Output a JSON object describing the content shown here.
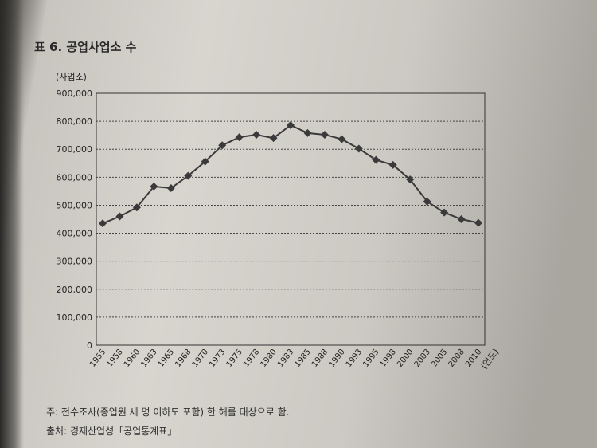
{
  "figure": {
    "title": "표 6. 공업사업소 수",
    "note": "주: 전수조사(종업원 세 명 이하도 포함) 한 해를 대상으로 함.",
    "source": "출처: 경제산업성「공업통계표」"
  },
  "chart_data": {
    "type": "line",
    "title": "표 6. 공업사업소 수",
    "ylabel": "(사업소)",
    "xlabel": "(연도)",
    "ylim": [
      0,
      900000
    ],
    "grid": "horizontal dotted",
    "marker": "diamond",
    "line_color": "#3a3a3a",
    "categories": [
      "1955",
      "1958",
      "1960",
      "1963",
      "1965",
      "1968",
      "1970",
      "1973",
      "1975",
      "1978",
      "1980",
      "1983",
      "1985",
      "1988",
      "1990",
      "1993",
      "1995",
      "1998",
      "2000",
      "2003",
      "2005",
      "2008",
      "2010"
    ],
    "series": [
      {
        "values": [
          435000,
          460000,
          492000,
          567000,
          561000,
          605000,
          656000,
          714000,
          743000,
          752000,
          740000,
          786000,
          758000,
          752000,
          736000,
          702000,
          662000,
          644000,
          592000,
          513000,
          474000,
          450000,
          437000
        ]
      }
    ],
    "ytick_labels": [
      "0",
      "100,000",
      "200,000",
      "300,000",
      "400,000",
      "500,000",
      "600,000",
      "700,000",
      "800,000",
      "900,000"
    ]
  }
}
